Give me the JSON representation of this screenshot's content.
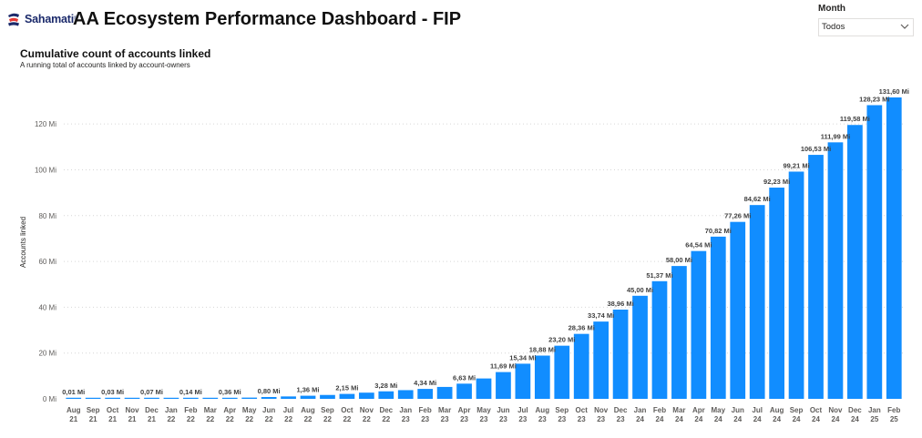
{
  "header": {
    "logo_text": "Sahamati",
    "logo_tm": "®",
    "title": "AA Ecosystem Performance Dashboard - FIP"
  },
  "slicer": {
    "label": "Month",
    "value": "Todos"
  },
  "colors": {
    "bar": "#118dff",
    "logo": "#1b2a6b",
    "logo_accent": "#e53935"
  },
  "icons": {
    "dropdown": "chevron-down-icon",
    "logo": "sahamati-logo-icon"
  },
  "chart_data": {
    "type": "bar",
    "title": "Cumulative count of accounts linked",
    "subtitle": "A running total of accounts linked by account-owners",
    "xlabel": "",
    "ylabel": "Accounts linked",
    "ylim": [
      0,
      132
    ],
    "y_ticks": [
      "0 Mi",
      "20 Mi",
      "40 Mi",
      "60 Mi",
      "80 Mi",
      "100 Mi",
      "120 Mi"
    ],
    "y_tick_values": [
      0,
      20,
      40,
      60,
      80,
      100,
      120
    ],
    "grid": true,
    "categories": [
      "Aug 21",
      "Sep 21",
      "Oct 21",
      "Nov 21",
      "Dec 21",
      "Jan 22",
      "Feb 22",
      "Mar 22",
      "Apr 22",
      "May 22",
      "Jun 22",
      "Jul 22",
      "Aug 22",
      "Sep 22",
      "Oct 22",
      "Nov 22",
      "Dec 22",
      "Jan 23",
      "Feb 23",
      "Mar 23",
      "Apr 23",
      "May 23",
      "Jun 23",
      "Jul 23",
      "Aug 23",
      "Sep 23",
      "Oct 23",
      "Nov 23",
      "Dec 23",
      "Jan 24",
      "Feb 24",
      "Mar 24",
      "Apr 24",
      "May 24",
      "Jun 24",
      "Jul 24",
      "Aug 24",
      "Sep 24",
      "Oct 24",
      "Nov 24",
      "Dec 24",
      "Jan 25",
      "Feb 25"
    ],
    "values": [
      0.01,
      0.02,
      0.03,
      0.05,
      0.07,
      0.1,
      0.14,
      0.24,
      0.36,
      0.55,
      0.8,
      1.05,
      1.36,
      1.7,
      2.15,
      2.7,
      3.28,
      3.8,
      4.34,
      5.2,
      6.63,
      8.9,
      11.69,
      15.34,
      18.88,
      23.2,
      28.36,
      33.74,
      38.96,
      45.0,
      51.37,
      58.0,
      64.54,
      70.82,
      77.26,
      84.62,
      92.23,
      99.21,
      106.53,
      111.99,
      119.58,
      128.23,
      131.6
    ],
    "data_labels": [
      "0,01 Mi",
      "",
      "0,03 Mi",
      "",
      "0,07 Mi",
      "",
      "0,14 Mi",
      "",
      "0,36 Mi",
      "",
      "0,80 Mi",
      "",
      "1,36 Mi",
      "",
      "2,15 Mi",
      "",
      "3,28 Mi",
      "",
      "4,34 Mi",
      "",
      "6,63 Mi",
      "",
      "11,69 Mi",
      "15,34 Mi",
      "18,88 Mi",
      "23,20 Mi",
      "28,36 Mi",
      "33,74 Mi",
      "38,96 Mi",
      "45,00 Mi",
      "51,37 Mi",
      "58,00 Mi",
      "64,54 Mi",
      "70,82 Mi",
      "77,26 Mi",
      "84,62 Mi",
      "92,23 Mi",
      "99,21 Mi",
      "106,53 Mi",
      "111,99 Mi",
      "119,58 Mi",
      "128,23 Mi",
      "131,60 Mi"
    ]
  }
}
